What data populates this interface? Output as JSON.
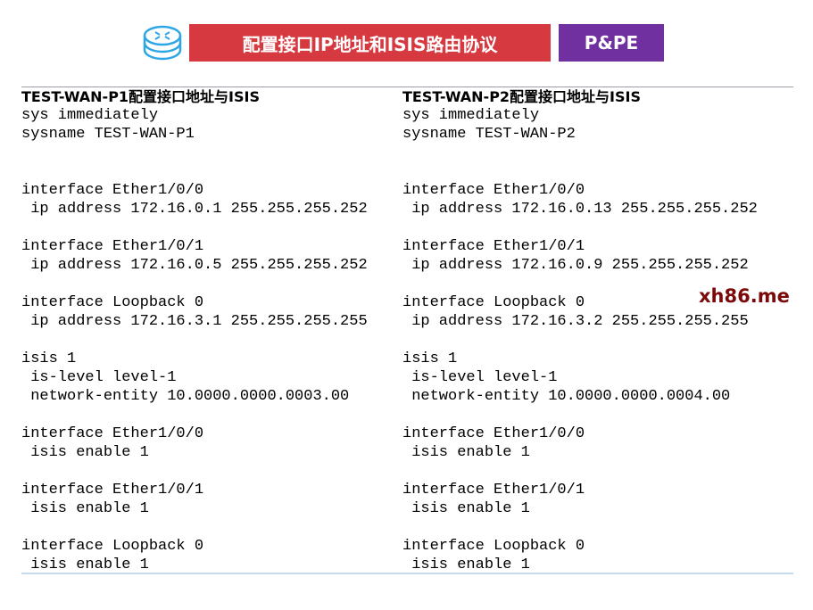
{
  "header": {
    "title": "配置接口IP地址和ISIS路由协议",
    "tag": "P&PE",
    "icon": "router-icon",
    "title_color": "#d63a40",
    "tag_color": "#7030a0"
  },
  "left": {
    "title": "TEST-WAN-P1配置接口地址与ISIS",
    "lines": [
      "sys immediately",
      "sysname TEST-WAN-P1",
      "",
      "",
      "interface Ether1/0/0",
      " ip address 172.16.0.1 255.255.255.252",
      "",
      "interface Ether1/0/1",
      " ip address 172.16.0.5 255.255.255.252",
      "",
      "interface Loopback 0",
      " ip address 172.16.3.1 255.255.255.255",
      "",
      "isis 1",
      " is-level level-1",
      " network-entity 10.0000.0000.0003.00",
      "",
      "interface Ether1/0/0",
      " isis enable 1",
      "",
      "interface Ether1/0/1",
      " isis enable 1",
      "",
      "interface Loopback 0",
      " isis enable 1"
    ]
  },
  "right": {
    "title": "TEST-WAN-P2配置接口地址与ISIS",
    "lines": [
      "sys immediately",
      "sysname TEST-WAN-P2",
      "",
      "",
      "interface Ether1/0/0",
      " ip address 172.16.0.13 255.255.255.252",
      "",
      "interface Ether1/0/1",
      " ip address 172.16.0.9 255.255.255.252",
      "",
      "interface Loopback 0",
      " ip address 172.16.3.2 255.255.255.255",
      "",
      "isis 1",
      " is-level level-1",
      " network-entity 10.0000.0000.0004.00",
      "",
      "interface Ether1/0/0",
      " isis enable 1",
      "",
      "interface Ether1/0/1",
      " isis enable 1",
      "",
      "interface Loopback 0",
      " isis enable 1"
    ]
  },
  "watermark": "xh86.me"
}
